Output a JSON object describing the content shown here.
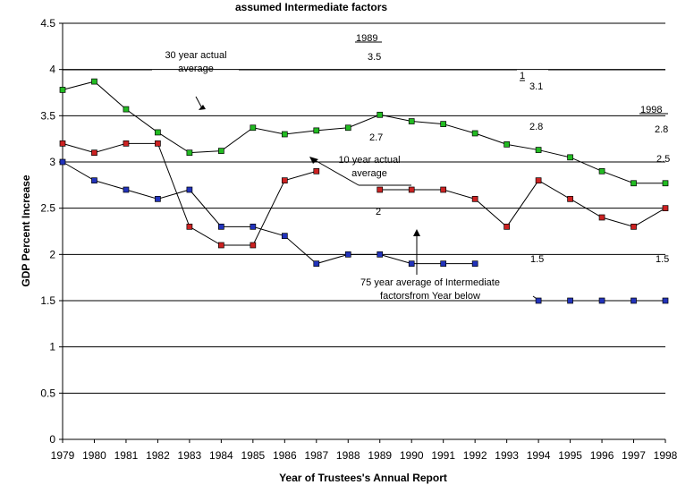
{
  "chart_data": {
    "type": "line",
    "title": "assumed Intermediate factors",
    "xlabel": "Year of Trustees's Annual Report",
    "ylabel": "GDP Percent Increase",
    "ylim": [
      0,
      4.5
    ],
    "yticks": [
      "0",
      "0.5",
      "1",
      "1.5",
      "2",
      "2.5",
      "3",
      "3.5",
      "4",
      "4.5"
    ],
    "categories": [
      "1979",
      "1980",
      "1981",
      "1982",
      "1983",
      "1984",
      "1985",
      "1986",
      "1987",
      "1988",
      "1989",
      "1990",
      "1991",
      "1992",
      "1993",
      "1994",
      "1995",
      "1996",
      "1997",
      "1998"
    ],
    "grid": true,
    "legend": "none",
    "series": [
      {
        "color": "#22bb22",
        "values": [
          3.78,
          3.87,
          3.57,
          3.32,
          3.1,
          3.12,
          3.37,
          3.3,
          3.34,
          3.37,
          3.51,
          3.44,
          3.41,
          3.31,
          3.19,
          3.13,
          3.05,
          2.9,
          2.77,
          2.77
        ]
      },
      {
        "color": "#cc2222",
        "values": [
          3.2,
          3.1,
          3.2,
          3.2,
          2.3,
          2.1,
          2.1,
          2.8,
          2.9,
          null,
          2.7,
          2.7,
          2.7,
          2.6,
          2.3,
          2.8,
          2.6,
          2.4,
          2.3,
          2.5
        ]
      },
      {
        "color": "#2233bb",
        "values": [
          3.0,
          2.8,
          2.7,
          2.6,
          2.7,
          2.3,
          2.3,
          2.2,
          1.9,
          2.0,
          2.0,
          1.9,
          1.9,
          1.9,
          null,
          1.5,
          1.5,
          1.5,
          1.5,
          1.5
        ]
      }
    ],
    "annotations": {
      "label_1989": "1989",
      "label_1998": "1998",
      "v_1989_30yr": "3.5",
      "v_1989_10yr": "2.7",
      "v_1989_75yr": "2",
      "note_1": "1",
      "v_1998_30yr": "3.1",
      "v_1998_10yr": "2.8",
      "v_1998_10yr_b": "2.8",
      "v_1998_75yr_a": "2.5",
      "v_1998_75yr_b": "1.5",
      "v_1998_75yr_c": "1.5",
      "thirty_year_line1": "30 year actual",
      "thirty_year_line2": "average",
      "ten_year_line1": "10 year actual",
      "ten_year_line2": "average",
      "seventyfive_line1": "75 year average of Intermediate",
      "seventyfive_line2": "factorsfrom Year below"
    }
  }
}
